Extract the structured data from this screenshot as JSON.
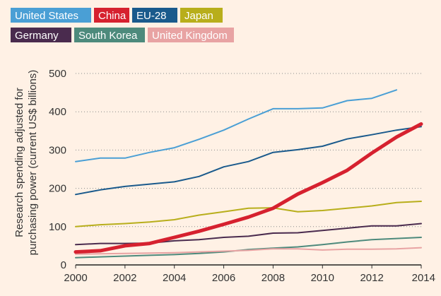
{
  "chart_data": {
    "type": "line",
    "title": "",
    "xlabel": "",
    "ylabel": "Research spending adjusted for purchasing power (current US$ billions)",
    "ylabel_lines": [
      "Research spending adjusted for",
      "purchasing power (current US$ billions)"
    ],
    "xlim": [
      2000,
      2014
    ],
    "ylim": [
      0,
      500
    ],
    "x_ticks": [
      2000,
      2002,
      2004,
      2006,
      2008,
      2010,
      2012,
      2014
    ],
    "y_ticks": [
      0,
      100,
      200,
      300,
      400,
      500
    ],
    "grid": "horizontal-dotted",
    "legend_position": "top-left",
    "series": [
      {
        "name": "United States",
        "color": "#4a9fd5",
        "width": 2,
        "x": [
          2000,
          2001,
          2002,
          2003,
          2004,
          2005,
          2006,
          2007,
          2008,
          2009,
          2010,
          2011,
          2012,
          2013
        ],
        "y": [
          270,
          279,
          279,
          294,
          306,
          328,
          352,
          381,
          408,
          408,
          410,
          429,
          435,
          457
        ]
      },
      {
        "name": "China",
        "color": "#d6212f",
        "width": 5,
        "x": [
          2000,
          2001,
          2002,
          2003,
          2004,
          2005,
          2006,
          2007,
          2008,
          2009,
          2010,
          2011,
          2012,
          2013,
          2014
        ],
        "y": [
          34,
          37,
          50,
          56,
          72,
          88,
          106,
          125,
          148,
          185,
          215,
          247,
          292,
          334,
          368
        ]
      },
      {
        "name": "EU-28",
        "color": "#1a5a8c",
        "width": 2,
        "x": [
          2000,
          2001,
          2002,
          2003,
          2004,
          2005,
          2006,
          2007,
          2008,
          2009,
          2010,
          2011,
          2012,
          2013,
          2014
        ],
        "y": [
          184,
          196,
          205,
          211,
          217,
          231,
          256,
          270,
          294,
          301,
          310,
          329,
          340,
          352,
          361
        ]
      },
      {
        "name": "Japan",
        "color": "#b8ae1b",
        "width": 2,
        "x": [
          2000,
          2001,
          2002,
          2003,
          2004,
          2005,
          2006,
          2007,
          2008,
          2009,
          2010,
          2011,
          2012,
          2013,
          2014
        ],
        "y": [
          100,
          105,
          108,
          112,
          118,
          130,
          139,
          148,
          149,
          139,
          142,
          148,
          154,
          163,
          166
        ]
      },
      {
        "name": "Germany",
        "color": "#4a2b4e",
        "width": 2,
        "x": [
          2000,
          2001,
          2002,
          2003,
          2004,
          2005,
          2006,
          2007,
          2008,
          2009,
          2010,
          2011,
          2012,
          2013,
          2014
        ],
        "y": [
          53,
          56,
          56,
          57,
          63,
          66,
          72,
          75,
          83,
          84,
          90,
          96,
          102,
          102,
          108
        ]
      },
      {
        "name": "South Korea",
        "color": "#4d8a7c",
        "width": 2,
        "x": [
          2000,
          2001,
          2002,
          2003,
          2004,
          2005,
          2006,
          2007,
          2008,
          2009,
          2010,
          2011,
          2012,
          2013,
          2014
        ],
        "y": [
          19,
          21,
          23,
          25,
          27,
          30,
          34,
          40,
          44,
          47,
          53,
          60,
          66,
          69,
          72
        ]
      },
      {
        "name": "United Kingdom",
        "color": "#e8a3a3",
        "width": 2,
        "x": [
          2000,
          2001,
          2002,
          2003,
          2004,
          2005,
          2006,
          2007,
          2008,
          2009,
          2010,
          2011,
          2012,
          2013,
          2014
        ],
        "y": [
          28,
          29,
          30,
          31,
          32,
          34,
          36,
          38,
          42,
          42,
          39,
          41,
          41,
          42,
          45
        ]
      }
    ]
  }
}
